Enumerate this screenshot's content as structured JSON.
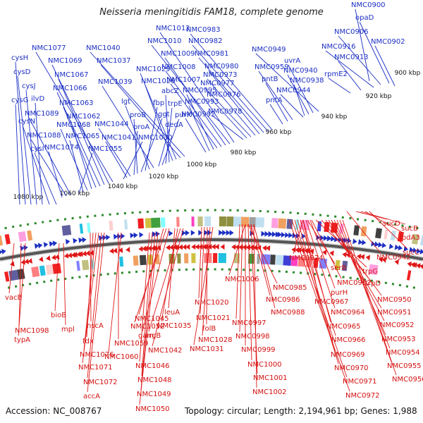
{
  "title": "Neisseria meningitidis FAM18, complete genome",
  "footer": {
    "accession": "Accession: NC_008767",
    "summary": "Topology: circular; Length: 2,194,961 bp; Genes: 1,988"
  },
  "colors": {
    "forward": "#1b2fc4",
    "reverse": "#e01818",
    "backbone": "#555555",
    "tick": "#2a8a2a"
  },
  "ticks": [
    "900 kbp",
    "920 kbp",
    "940 kbp",
    "960 kbp",
    "980 kbp",
    "1000 kbp",
    "1020 kbp",
    "1040 kbp",
    "1060 kbp",
    "1080 kbp"
  ],
  "forward_labels": [
    "NMC0900",
    "opaD",
    "NMC0906",
    "NMC0902",
    "NMC0916",
    "NMC0913",
    "rpmE2",
    "NMC0949",
    "uvrA",
    "NMC0940",
    "NMC0938",
    "NMC0944",
    "NMC0959",
    "pntB",
    "pntA",
    "NMC0983",
    "NMC0982",
    "NMC0981",
    "NMC0980",
    "NMC0973",
    "NMC0977",
    "NMC0976",
    "NMC0978",
    "NMC1012",
    "NMC1010",
    "NMC1009",
    "NMC1008",
    "NMC1007",
    "NMC0995",
    "NMC0993",
    "NMC0992",
    "NMC1040",
    "NMC1037",
    "NMC1029",
    "NMC1026",
    "abcZ",
    "trpE",
    "purK",
    "dedA",
    "NMC1039",
    "lgt",
    "fbp",
    "ggt",
    "proB",
    "proA",
    "NMC1044",
    "NMC1041",
    "NMC1030",
    "NMC1077",
    "NMC1069",
    "NMC1067",
    "NMC1066",
    "NMC1063",
    "NMC1062",
    "NMC1068",
    "NMC1065",
    "NMC1055",
    "NMC1089",
    "NMC1088",
    "NMC1074",
    "cysH",
    "cysD",
    "cysJ",
    "ilvD",
    "cysG",
    "cysN",
    "cysI"
  ],
  "reverse_labels": [
    "sucD",
    "sucB",
    "lpdA3",
    "sucC",
    "NMC0942",
    "NMC0974",
    "serB",
    "trpG",
    "trpD",
    "NMC0962",
    "purH",
    "NMC0950",
    "NMC0967",
    "NMC0951",
    "NMC0964",
    "NMC0952",
    "NMC0965",
    "NMC0953",
    "NMC0966",
    "NMC0954",
    "NMC0969",
    "NMC0955",
    "NMC0970",
    "NMC0956",
    "NMC0971",
    "NMC0972",
    "NMC1006",
    "NMC0985",
    "NMC0986",
    "NMC0988",
    "NMC0997",
    "NMC0998",
    "NMC0999",
    "NMC1000",
    "NMC1001",
    "NMC1002",
    "NMC1020",
    "NMC1021",
    "folB",
    "NMC1028",
    "NMC1031",
    "leuA",
    "NMC1035",
    "argB",
    "NMC1042",
    "NMC1045",
    "NMC1052",
    "gam",
    "NMC1046",
    "NMC1048",
    "NMC1049",
    "NMC1050",
    "NMC1059",
    "NMC1060",
    "hscA",
    "fdx",
    "NMC1076",
    "NMC1071",
    "NMC1072",
    "accA",
    "bioB",
    "mpl",
    "vacB",
    "NMC1098",
    "typA"
  ]
}
